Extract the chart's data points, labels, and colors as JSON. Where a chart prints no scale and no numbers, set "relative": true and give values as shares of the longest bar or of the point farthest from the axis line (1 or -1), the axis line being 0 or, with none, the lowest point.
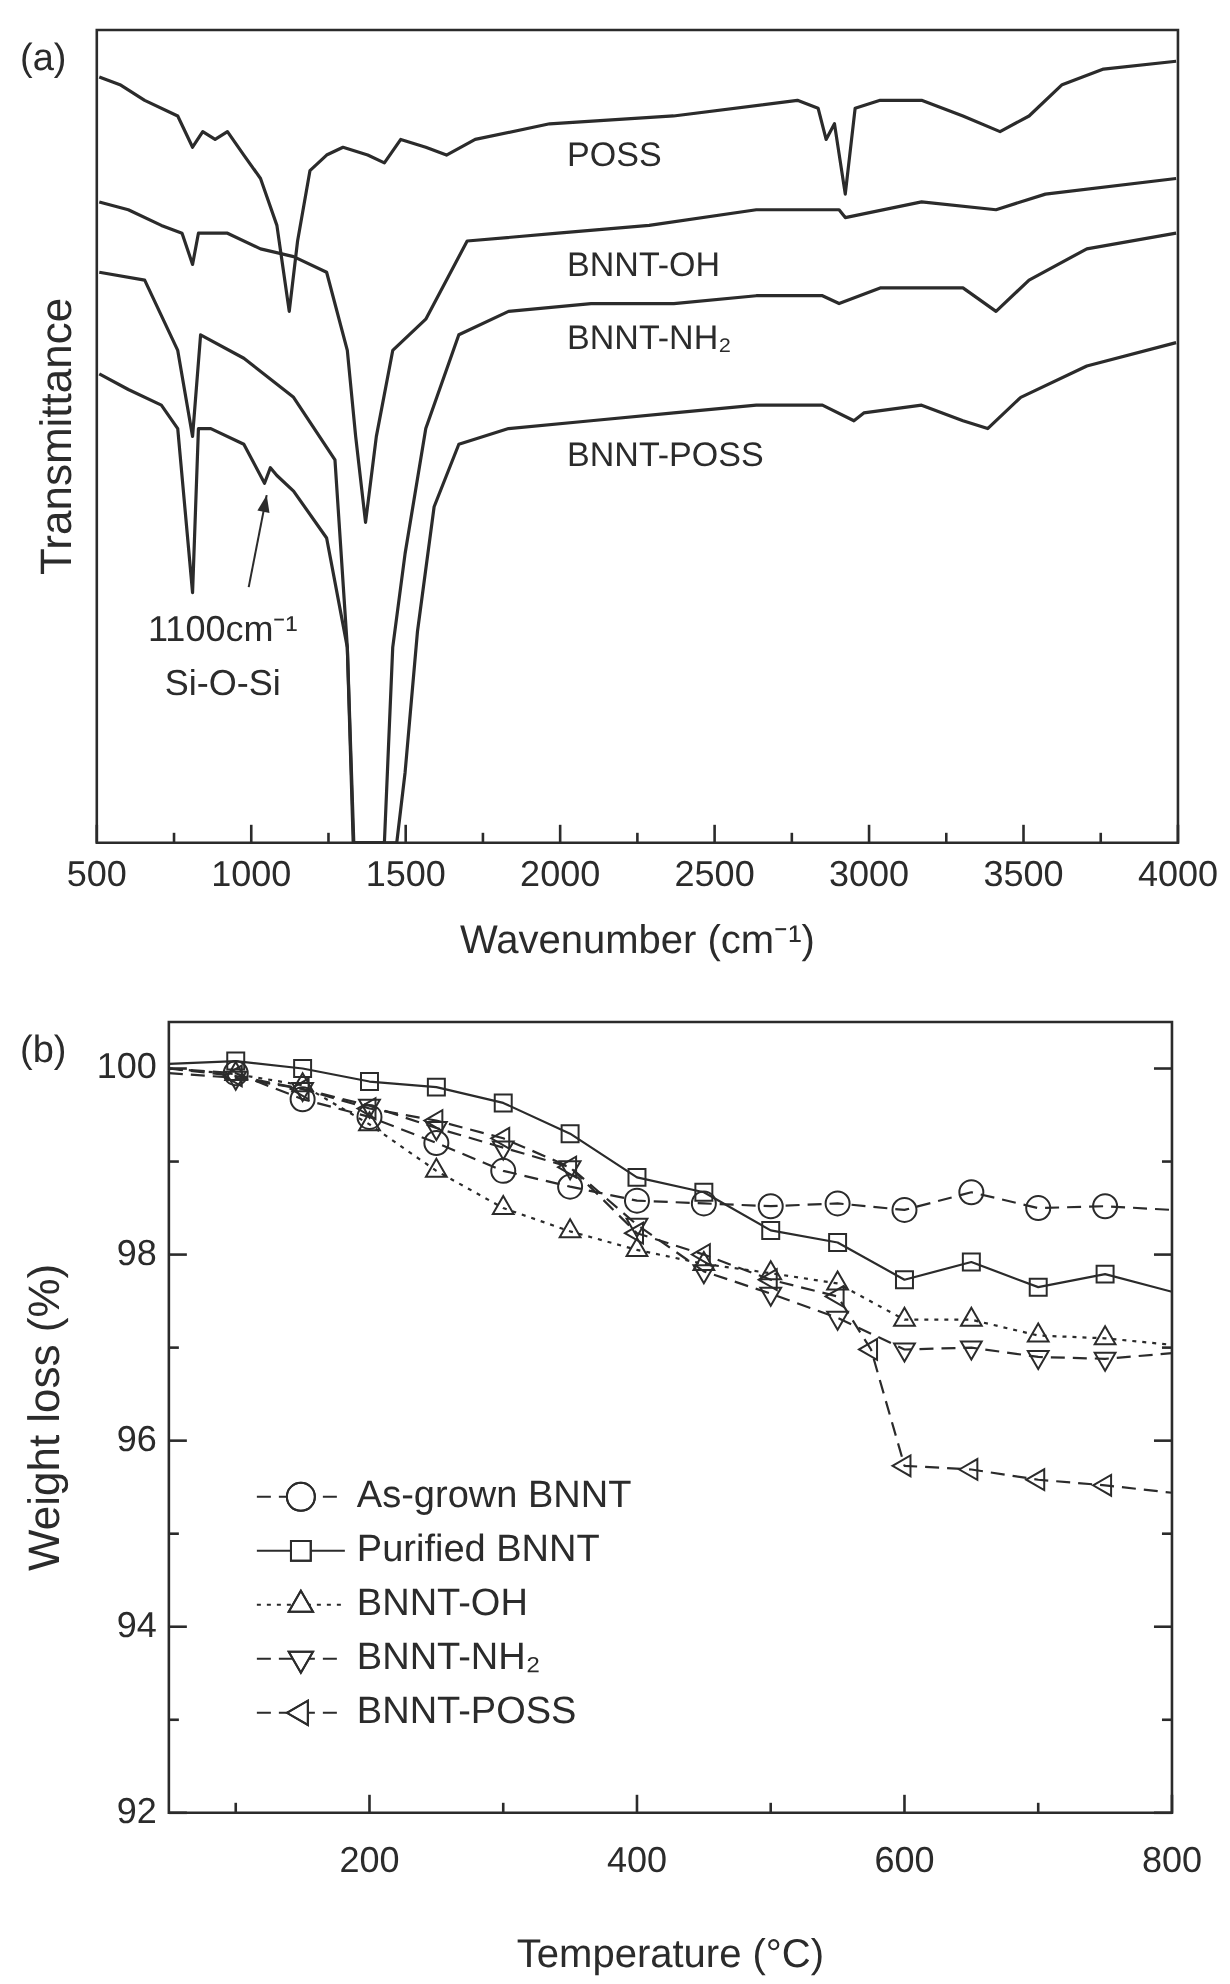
{
  "chart_data": [
    {
      "type": "line",
      "title": "(a)",
      "xlabel": "Wavenumber (cm⁻¹)",
      "ylabel": "Transmittance",
      "relative": true,
      "tick_labels": "x",
      "xlim": [
        500,
        4000
      ],
      "xticks": [
        500,
        {
          "value": 750,
          "label": null
        },
        1000,
        {
          "value": 1250,
          "label": null
        },
        1500,
        {
          "value": 1750,
          "label": null
        },
        2000,
        {
          "value": 2250,
          "label": null
        },
        2500,
        {
          "value": 2750,
          "label": null
        },
        3000,
        {
          "value": 3250,
          "label": null
        },
        3500,
        {
          "value": 3750,
          "label": null
        },
        4000
      ],
      "annotations": [
        {
          "text": "1100cm⁻¹\nSi-O-Si",
          "x": 1050,
          "y": 0.45
        }
      ],
      "series": [
        {
          "name": "POSS",
          "color": "#2b2b2b",
          "x": [
            508,
            575,
            655,
            762,
            810,
            843,
            883,
            923,
            976,
            1030,
            1083,
            1123,
            1150,
            1190,
            1244,
            1297,
            1377,
            1431,
            1484,
            1565,
            1632,
            1725,
            1966,
            2367,
            2768,
            2835,
            2861,
            2888,
            2923,
            2955,
            3036,
            3170,
            3304,
            3424,
            3518,
            3625,
            3759,
            3994
          ],
          "values": [
            0.98,
            0.97,
            0.95,
            0.93,
            0.89,
            0.91,
            0.9,
            0.91,
            0.88,
            0.85,
            0.79,
            0.68,
            0.77,
            0.86,
            0.88,
            0.89,
            0.88,
            0.87,
            0.9,
            0.89,
            0.88,
            0.9,
            0.92,
            0.93,
            0.95,
            0.94,
            0.9,
            0.92,
            0.83,
            0.94,
            0.95,
            0.95,
            0.93,
            0.91,
            0.93,
            0.97,
            0.99,
            1
          ]
        },
        {
          "name": "BNNT-OH",
          "color": "#2b2b2b",
          "x": [
            508,
            602,
            709,
            776,
            810,
            829,
            923,
            1030,
            1137,
            1244,
            1311,
            1338,
            1370,
            1405,
            1458,
            1565,
            1699,
            1993,
            2288,
            2635,
            2903,
            2923,
            3170,
            3411,
            3571,
            3994
          ],
          "values": [
            0.82,
            0.81,
            0.79,
            0.78,
            0.74,
            0.78,
            0.78,
            0.76,
            0.75,
            0.73,
            0.63,
            0.52,
            0.41,
            0.52,
            0.63,
            0.67,
            0.77,
            0.78,
            0.79,
            0.81,
            0.81,
            0.8,
            0.82,
            0.81,
            0.83,
            0.85
          ]
        },
        {
          "name": "BNNT-NH₂",
          "color": "#2b2b2b",
          "x": [
            508,
            655,
            762,
            810,
            836,
            976,
            1137,
            1271,
            1311,
            1332,
            1431,
            1458,
            1498,
            1565,
            1672,
            1833,
            2100,
            2368,
            2635,
            2849,
            2903,
            3036,
            3304,
            3411,
            3518,
            3705,
            3994
          ],
          "values": [
            0.73,
            0.72,
            0.63,
            0.52,
            0.65,
            0.62,
            0.57,
            0.49,
            0.25,
            0,
            0,
            0.25,
            0.37,
            0.53,
            0.65,
            0.68,
            0.69,
            0.69,
            0.7,
            0.7,
            0.69,
            0.71,
            0.71,
            0.68,
            0.72,
            0.76,
            0.78
          ]
        },
        {
          "name": "BNNT-POSS",
          "color": "#2b2b2b",
          "x": [
            508,
            602,
            709,
            762,
            810,
            829,
            869,
            976,
            1043,
            1062,
            1083,
            1137,
            1244,
            1311,
            1330,
            1471,
            1498,
            1538,
            1592,
            1672,
            1833,
            2100,
            2368,
            2635,
            2849,
            2951,
            2983,
            3170,
            3304,
            3384,
            3491,
            3705,
            3994
          ],
          "values": [
            0.6,
            0.58,
            0.56,
            0.53,
            0.32,
            0.53,
            0.53,
            0.51,
            0.46,
            0.48,
            0.47,
            0.45,
            0.39,
            0.25,
            0,
            0,
            0.09,
            0.27,
            0.43,
            0.51,
            0.53,
            0.54,
            0.55,
            0.56,
            0.56,
            0.54,
            0.55,
            0.56,
            0.54,
            0.53,
            0.57,
            0.61,
            0.64
          ]
        }
      ]
    },
    {
      "type": "line",
      "title": "(b)",
      "xlabel": "Temperature (°C)",
      "ylabel": "Weight loss (%)",
      "xlim": [
        50,
        800
      ],
      "ylim": [
        92,
        100.5
      ],
      "xticks": [
        {
          "value": 100,
          "label": null
        },
        200,
        {
          "value": 300,
          "label": null
        },
        400,
        {
          "value": 500,
          "label": null
        },
        600,
        {
          "value": 700,
          "label": null
        },
        800
      ],
      "yticks": [
        92,
        {
          "value": 93,
          "label": null
        },
        94,
        {
          "value": 95,
          "label": null
        },
        96,
        {
          "value": 97,
          "label": null
        },
        98,
        {
          "value": 99,
          "label": null
        },
        100
      ],
      "legend": "bottom left",
      "x": [
        50,
        100,
        150,
        200,
        250,
        300,
        350,
        400,
        450,
        500,
        550,
        600,
        650,
        700,
        750,
        800
      ],
      "series": [
        {
          "name": "As-grown BNNT",
          "color": "#2b2b2b",
          "marker": "circle",
          "line_style": "dashed",
          "values": [
            100,
            99.95,
            99.67,
            99.48,
            99.2,
            98.9,
            98.73,
            98.58,
            98.55,
            98.52,
            98.55,
            98.48,
            98.67,
            98.5,
            98.52,
            98.48
          ]
        },
        {
          "name": "Purified BNNT",
          "color": "#2b2b2b",
          "marker": "square",
          "line_style": "solid",
          "values": [
            100.05,
            100.08,
            100,
            99.86,
            99.8,
            99.63,
            99.3,
            98.83,
            98.67,
            98.26,
            98.13,
            97.73,
            97.92,
            97.65,
            97.79,
            97.6
          ]
        },
        {
          "name": "BNNT-OH",
          "color": "#2b2b2b",
          "marker": "triangle",
          "line_style": "dotted",
          "values": [
            100,
            99.94,
            99.82,
            99.4,
            98.9,
            98.5,
            98.25,
            98.05,
            97.9,
            97.8,
            97.69,
            97.3,
            97.3,
            97.13,
            97.1,
            97.03
          ]
        },
        {
          "name": "BNNT-NH₂",
          "color": "#2b2b2b",
          "marker": "triangle-down",
          "line_style": "dashed",
          "values": [
            99.95,
            99.9,
            99.78,
            99.6,
            99.36,
            99.15,
            98.94,
            98.32,
            97.82,
            97.58,
            97.32,
            96.98,
            97,
            96.9,
            96.88,
            96.94
          ]
        },
        {
          "name": "BNNT-POSS",
          "color": "#2b2b2b",
          "marker": "triangle-left",
          "line_style": "dashed",
          "x": [
            50,
            100,
            150,
            200,
            250,
            300,
            350,
            400,
            450,
            500,
            550,
            575,
            600,
            650,
            700,
            750,
            800
          ],
          "values": [
            100,
            99.92,
            99.78,
            99.57,
            99.44,
            99.25,
            98.94,
            98.23,
            98,
            97.73,
            97.55,
            96.98,
            95.73,
            95.69,
            95.58,
            95.52,
            95.44
          ]
        }
      ]
    }
  ]
}
